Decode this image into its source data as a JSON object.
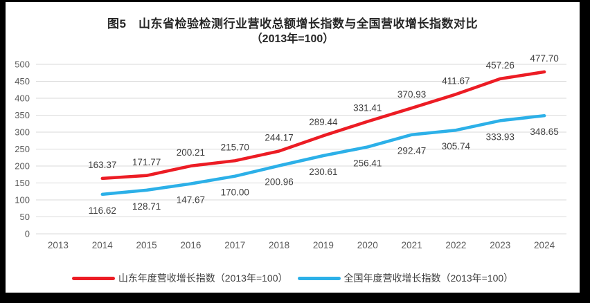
{
  "title": {
    "line1": "图5　山东省检验检测行业营收总额增长指数与全国营收增长指数对比",
    "line2": "（2013年=100）"
  },
  "colors": {
    "frame_background": "#000000",
    "panel_background": "#ffffff",
    "gridline": "#D9D9D9",
    "axis_text": "#595959",
    "data_label_text": "#404040",
    "shandong_red": "#EC1C24",
    "national_blue": "#2CB0E8"
  },
  "chart_data": {
    "type": "line",
    "title": "图5　山东省检验检测行业营收总额增长指数与全国营收增长指数对比（2013年=100）",
    "categories": [
      "2013",
      "2014",
      "2015",
      "2016",
      "2017",
      "2018",
      "2019",
      "2020",
      "2021",
      "2022",
      "2023",
      "2024"
    ],
    "series": [
      {
        "name": "山东年度营收增长指数（2013年=100）",
        "color": "#EC1C24",
        "label_position": "above",
        "values": [
          null,
          163.37,
          171.77,
          200.21,
          215.7,
          244.17,
          289.44,
          331.41,
          370.93,
          411.67,
          457.26,
          477.7
        ]
      },
      {
        "name": "全国年度营收增长指数（2013年=100）",
        "color": "#2CB0E8",
        "label_position": "below",
        "values": [
          null,
          116.62,
          128.71,
          147.67,
          170.0,
          200.96,
          230.61,
          256.41,
          292.47,
          305.74,
          333.93,
          348.65
        ]
      }
    ],
    "xlabel": "",
    "ylabel": "",
    "ylim": [
      0,
      500
    ],
    "ytick_step": 50,
    "grid": true,
    "legend_position": "bottom",
    "data_labels_decimals": 2
  }
}
